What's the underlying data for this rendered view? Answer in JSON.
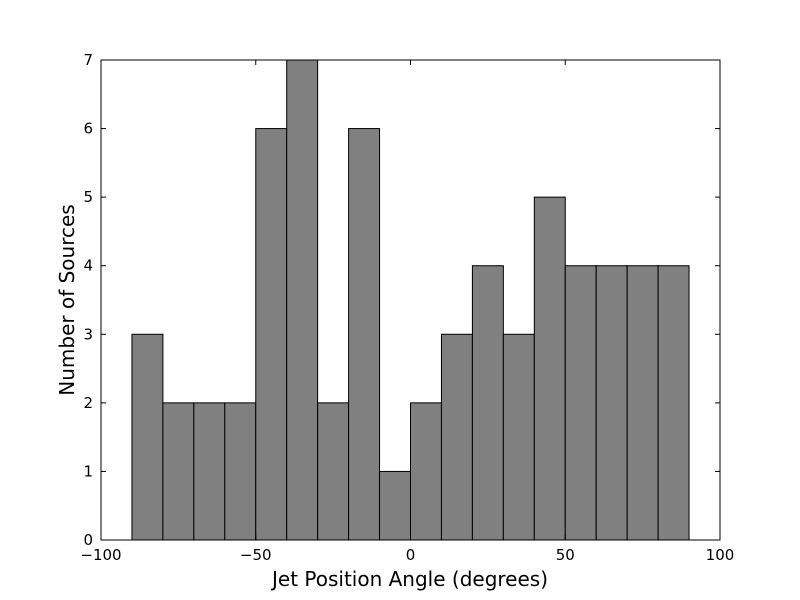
{
  "chart_data": {
    "type": "bar",
    "title": "",
    "xlabel": "Jet Position Angle (degrees)",
    "ylabel": "Number of Sources",
    "xlim": [
      -100,
      100
    ],
    "ylim": [
      0,
      7
    ],
    "bin_width": 10,
    "bins": [
      {
        "x": -90,
        "count": 3
      },
      {
        "x": -80,
        "count": 2
      },
      {
        "x": -70,
        "count": 2
      },
      {
        "x": -60,
        "count": 2
      },
      {
        "x": -50,
        "count": 6
      },
      {
        "x": -40,
        "count": 7
      },
      {
        "x": -30,
        "count": 2
      },
      {
        "x": -20,
        "count": 6
      },
      {
        "x": -10,
        "count": 1
      },
      {
        "x": 0,
        "count": 2
      },
      {
        "x": 10,
        "count": 3
      },
      {
        "x": 20,
        "count": 4
      },
      {
        "x": 30,
        "count": 3
      },
      {
        "x": 40,
        "count": 5
      },
      {
        "x": 50,
        "count": 4
      },
      {
        "x": 60,
        "count": 4
      },
      {
        "x": 70,
        "count": 4
      },
      {
        "x": 80,
        "count": 4
      }
    ],
    "xticks": [
      {
        "value": -100,
        "label": "−100"
      },
      {
        "value": -50,
        "label": "−50"
      },
      {
        "value": 0,
        "label": "0"
      },
      {
        "value": 50,
        "label": "50"
      },
      {
        "value": 100,
        "label": "100"
      }
    ],
    "yticks": [
      {
        "value": 0,
        "label": "0"
      },
      {
        "value": 1,
        "label": "1"
      },
      {
        "value": 2,
        "label": "2"
      },
      {
        "value": 3,
        "label": "3"
      },
      {
        "value": 4,
        "label": "4"
      },
      {
        "value": 5,
        "label": "5"
      },
      {
        "value": 6,
        "label": "6"
      },
      {
        "value": 7,
        "label": "7"
      }
    ],
    "grid": false,
    "bar_color": "#808080",
    "edge_color": "#000000"
  }
}
